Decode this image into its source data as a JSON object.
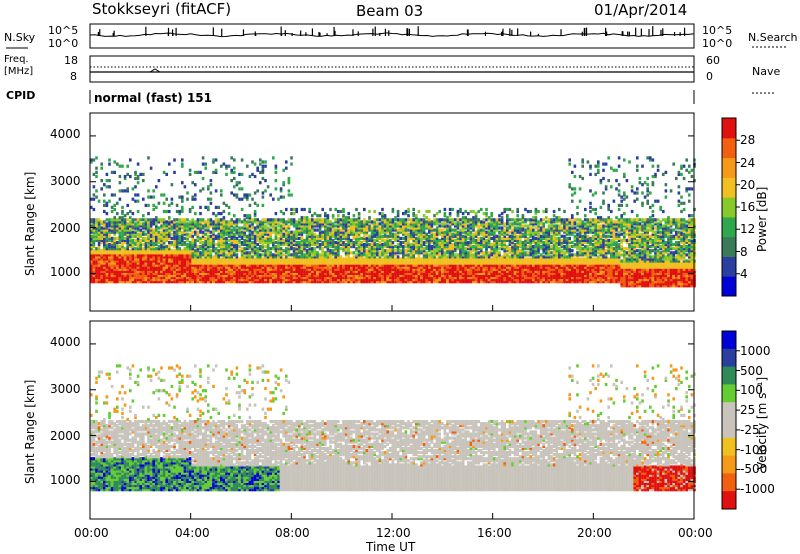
{
  "header": {
    "station": "Stokkseyri (fitACF)",
    "beam": "Beam 03",
    "date": "01/Apr/2014"
  },
  "top_panels": {
    "nsky_label": "N.Sky",
    "nsky_tick_top": "10^5",
    "nsky_tick_bottom": "10^0",
    "nsearch_label": "N.Search",
    "nsearch_tick_top": "10^5",
    "nsearch_tick_bottom": "10^0",
    "freq_label_1": "Freq.",
    "freq_label_2": "[MHz]",
    "freq_tick_top": "18",
    "freq_tick_bottom": "8",
    "nave_label": "Nave",
    "nave_tick_top": "60",
    "nave_tick_bottom": "0",
    "cpid_label": "CPID",
    "cpid_text": "normal (fast) 151"
  },
  "colors": {
    "power": [
      "#0000d8",
      "#2b3fa0",
      "#3a7a5a",
      "#2ea84a",
      "#88c92a",
      "#f0c020",
      "#f59a18",
      "#f06010",
      "#e01010"
    ],
    "velocity": [
      "#e01010",
      "#f06010",
      "#f59a18",
      "#f0c020",
      "#c8c4bc",
      "#c8c4bc",
      "#66cc33",
      "#2e8b57",
      "#2b3fa0",
      "#0000d8"
    ]
  },
  "chart_data": [
    {
      "type": "heatmap",
      "title": "",
      "xlabel": "Time UT",
      "ylabel": "Slant Range [km]",
      "x_ticks": [
        "00:00",
        "04:00",
        "08:00",
        "12:00",
        "16:00",
        "20:00",
        "00:00"
      ],
      "y_ticks": [
        "1000",
        "2000",
        "3000",
        "4000"
      ],
      "ylim": [
        180,
        4500
      ],
      "colorbar_label": "Power [dB]",
      "colorbar_ticks": [
        "4",
        "8",
        "12",
        "16",
        "20",
        "24",
        "28"
      ],
      "bands": [
        {
          "start_h": 0.0,
          "end_h": 24.0,
          "range_lo": 700,
          "range_hi": 1300,
          "level": "high"
        },
        {
          "start_h": 0.0,
          "end_h": 24.0,
          "range_lo": 1500,
          "range_hi": 2100,
          "level": "mid"
        },
        {
          "start_h": 0.0,
          "end_h": 24.0,
          "range_lo": 2100,
          "range_hi": 3400,
          "level": "low"
        }
      ]
    },
    {
      "type": "heatmap",
      "title": "",
      "xlabel": "Time UT",
      "ylabel": "Slant Range [km]",
      "x_ticks": [
        "00:00",
        "04:00",
        "08:00",
        "12:00",
        "16:00",
        "20:00",
        "00:00"
      ],
      "y_ticks": [
        "1000",
        "2000",
        "3000",
        "4000"
      ],
      "ylim": [
        180,
        4500
      ],
      "colorbar_label": "Velocity [m s⁻¹]",
      "colorbar_ticks": [
        "1000",
        "500",
        "100",
        "25",
        "-25",
        "-100",
        "-500",
        "-1000"
      ]
    }
  ]
}
